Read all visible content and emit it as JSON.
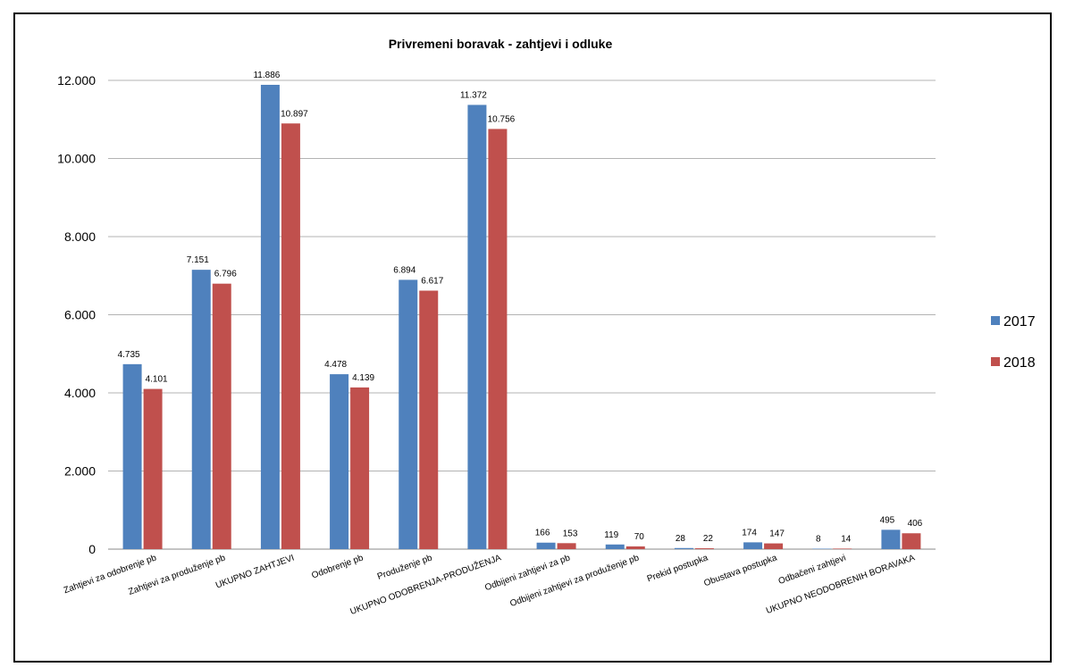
{
  "chart_data": {
    "type": "bar",
    "title": "Privremeni boravak - zahtjevi i odluke",
    "xlabel": "",
    "ylabel": "",
    "ylim": [
      0,
      12000
    ],
    "yticks": [
      0,
      2000,
      4000,
      6000,
      8000,
      10000,
      12000
    ],
    "ytick_labels": [
      "0",
      "2.000",
      "4.000",
      "6.000",
      "8.000",
      "10.000",
      "12.000"
    ],
    "grid": true,
    "legend_position": "right",
    "categories": [
      "Zahtjevi za odobrenje pb",
      "Zahtjevi za produženje pb",
      "UKUPNO ZAHTJEVI",
      "Odobrenje pb",
      "Produženje pb",
      "UKUPNO ODOBRENJA-PRODUŽENJA",
      "Odbijeni zahtjevi za pb",
      "Odbijeni zahtjevi za produženje pb",
      "Prekid postupka",
      "Obustava postupka",
      "Odbačeni zahtjevi",
      "UKUPNO NEODOBRENIH BORAVAKA"
    ],
    "series": [
      {
        "name": "2017",
        "color": "#4f81bd",
        "values": [
          4735,
          7151,
          11886,
          4478,
          6894,
          11372,
          166,
          119,
          28,
          174,
          8,
          495
        ],
        "labels": [
          "4.735",
          "7.151",
          "11.886",
          "4.478",
          "6.894",
          "11.372",
          "166",
          "119",
          "28",
          "174",
          "8",
          "495"
        ]
      },
      {
        "name": "2018",
        "color": "#c0504d",
        "values": [
          4101,
          6796,
          10897,
          4139,
          6617,
          10756,
          153,
          70,
          22,
          147,
          14,
          406
        ],
        "labels": [
          "4.101",
          "6.796",
          "10.897",
          "4.139",
          "6.617",
          "10.756",
          "153",
          "70",
          "22",
          "147",
          "14",
          "406"
        ]
      }
    ]
  }
}
